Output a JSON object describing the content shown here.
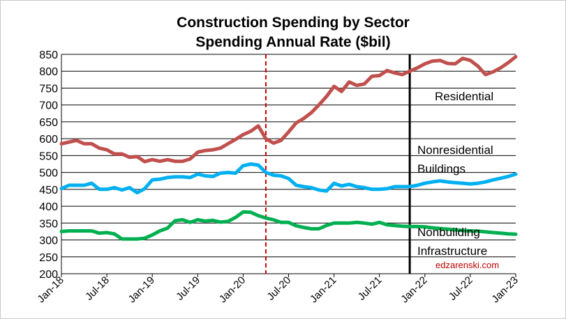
{
  "chart_data": {
    "type": "line",
    "title": "Construction Spending by Sector",
    "subtitle": "Spending Annual Rate ($bil)",
    "xlabel": "",
    "ylabel": "",
    "ylim": [
      200,
      850
    ],
    "yticks": [
      200,
      250,
      300,
      350,
      400,
      450,
      500,
      550,
      600,
      650,
      700,
      750,
      800,
      850
    ],
    "x": [
      "Jan-18",
      "Feb-18",
      "Mar-18",
      "Apr-18",
      "May-18",
      "Jun-18",
      "Jul-18",
      "Aug-18",
      "Sep-18",
      "Oct-18",
      "Nov-18",
      "Dec-18",
      "Jan-19",
      "Feb-19",
      "Mar-19",
      "Apr-19",
      "May-19",
      "Jun-19",
      "Jul-19",
      "Aug-19",
      "Sep-19",
      "Oct-19",
      "Nov-19",
      "Dec-19",
      "Jan-20",
      "Feb-20",
      "Mar-20",
      "Apr-20",
      "May-20",
      "Jun-20",
      "Jul-20",
      "Aug-20",
      "Sep-20",
      "Oct-20",
      "Nov-20",
      "Dec-20",
      "Jan-21",
      "Feb-21",
      "Mar-21",
      "Apr-21",
      "May-21",
      "Jun-21",
      "Jul-21",
      "Aug-21",
      "Sep-21",
      "Oct-21",
      "Nov-21",
      "Dec-21",
      "Jan-22",
      "Feb-22",
      "Mar-22",
      "Apr-22",
      "May-22",
      "Jun-22",
      "Jul-22",
      "Aug-22",
      "Sep-22",
      "Oct-22",
      "Nov-22",
      "Dec-22",
      "Jan-23"
    ],
    "x_tick_labels": [
      "Jan-18",
      "Jul-18",
      "Jan-19",
      "Jul-19",
      "Jan-20",
      "Jul-20",
      "Jan-21",
      "Jul-21",
      "Jan-22",
      "Jul-22",
      "Jan-23"
    ],
    "grid": "horizontal",
    "series": [
      {
        "name": "Residential",
        "color": "#c0504d",
        "values": [
          585,
          590,
          595,
          585,
          585,
          572,
          567,
          555,
          555,
          545,
          547,
          532,
          538,
          533,
          538,
          533,
          533,
          540,
          560,
          565,
          567,
          572,
          585,
          598,
          612,
          622,
          638,
          600,
          587,
          595,
          620,
          647,
          660,
          677,
          700,
          725,
          755,
          740,
          768,
          758,
          762,
          785,
          787,
          802,
          795,
          790,
          800,
          810,
          822,
          830,
          832,
          823,
          822,
          838,
          832,
          815,
          790,
          798,
          810,
          825,
          843
        ]
      },
      {
        "name": "Nonresidential Buildings",
        "color": "#00b0f0",
        "values": [
          452,
          462,
          462,
          462,
          468,
          450,
          450,
          455,
          448,
          455,
          440,
          452,
          478,
          480,
          485,
          487,
          487,
          485,
          495,
          490,
          488,
          498,
          500,
          498,
          520,
          525,
          522,
          500,
          492,
          490,
          482,
          462,
          458,
          455,
          448,
          445,
          468,
          460,
          465,
          458,
          455,
          450,
          450,
          452,
          458,
          458,
          458,
          462,
          468,
          472,
          475,
          472,
          470,
          468,
          466,
          468,
          472,
          478,
          483,
          488,
          495
        ]
      },
      {
        "name": "Nonbuilding Infrastructure",
        "color": "#00b050",
        "values": [
          325,
          327,
          327,
          327,
          327,
          320,
          322,
          318,
          303,
          303,
          303,
          305,
          315,
          327,
          335,
          357,
          360,
          352,
          360,
          356,
          358,
          353,
          355,
          367,
          383,
          382,
          372,
          365,
          360,
          352,
          352,
          342,
          337,
          333,
          333,
          343,
          350,
          350,
          350,
          352,
          350,
          347,
          352,
          345,
          343,
          341,
          340,
          340,
          339,
          336,
          334,
          332,
          330,
          328,
          327,
          326,
          324,
          322,
          320,
          318,
          317
        ]
      }
    ],
    "annotations": [
      {
        "text": "Residential"
      },
      {
        "text": "Nonresidential"
      },
      {
        "text": "Buildings"
      },
      {
        "text": "Nonbuilding"
      },
      {
        "text": "Infrastructure"
      }
    ],
    "reference_lines": [
      {
        "x": "Apr-20",
        "style": "dashed",
        "color": "#cc0000"
      },
      {
        "x": "Nov-21",
        "style": "solid",
        "color": "#000000"
      }
    ],
    "watermark": {
      "text": "edzarenski.com",
      "color": "#c00000"
    }
  }
}
